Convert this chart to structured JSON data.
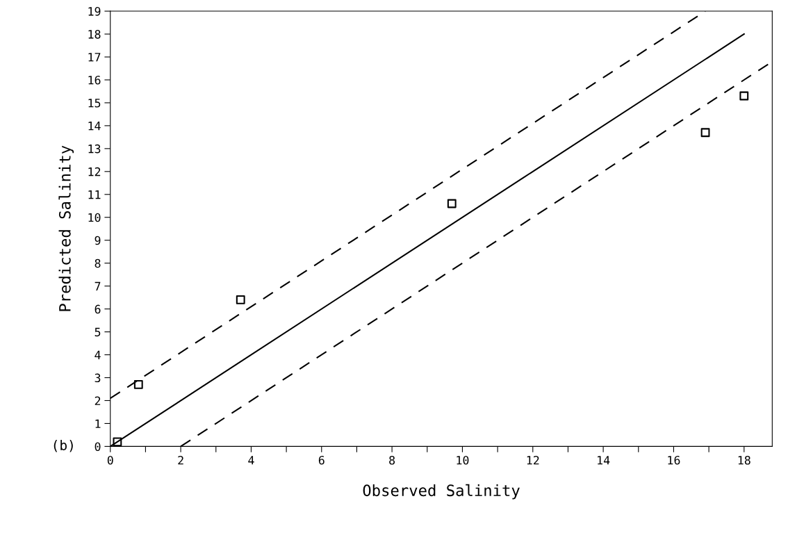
{
  "chart_data": {
    "type": "scatter",
    "xlabel": "Observed Salinity",
    "ylabel": "Predicted Salinity",
    "marker": "square",
    "grid": false,
    "legend": false,
    "annotations": [
      "(b)"
    ],
    "xlim": [
      0,
      18.8
    ],
    "ylim": [
      0,
      19
    ],
    "xticks": [
      0,
      {
        "value": 1,
        "label": null
      },
      2,
      {
        "value": 3,
        "label": null
      },
      4,
      {
        "value": 5,
        "label": null
      },
      6,
      {
        "value": 7,
        "label": null
      },
      8,
      {
        "value": 9,
        "label": null
      },
      10,
      {
        "value": 11,
        "label": null
      },
      12,
      {
        "value": 13,
        "label": null
      },
      14,
      {
        "value": 15,
        "label": null
      },
      16,
      {
        "value": 17,
        "label": null
      },
      18
    ],
    "yticks": [
      0,
      1,
      2,
      3,
      4,
      5,
      6,
      7,
      8,
      9,
      10,
      11,
      12,
      13,
      14,
      15,
      16,
      17,
      18,
      19
    ],
    "series": [
      {
        "color": "#000000",
        "x": [
          0.2,
          0.8,
          3.7,
          9.7,
          16.9,
          18.0
        ],
        "values": [
          0.2,
          2.7,
          6.4,
          10.6,
          13.7,
          15.3
        ]
      },
      {
        "type": "line",
        "color": "#000000",
        "line_style": "solid",
        "marker": "none",
        "x": [
          0,
          18
        ],
        "values": [
          0,
          18
        ]
      },
      {
        "type": "line",
        "color": "#000000",
        "line_style": "dashed",
        "marker": "none",
        "x": [
          0,
          16.9
        ],
        "values": [
          2.1,
          19
        ]
      },
      {
        "type": "line",
        "color": "#000000",
        "line_style": "dashed",
        "marker": "none",
        "x": [
          2,
          18.8
        ],
        "values": [
          0,
          16.8
        ]
      }
    ]
  }
}
